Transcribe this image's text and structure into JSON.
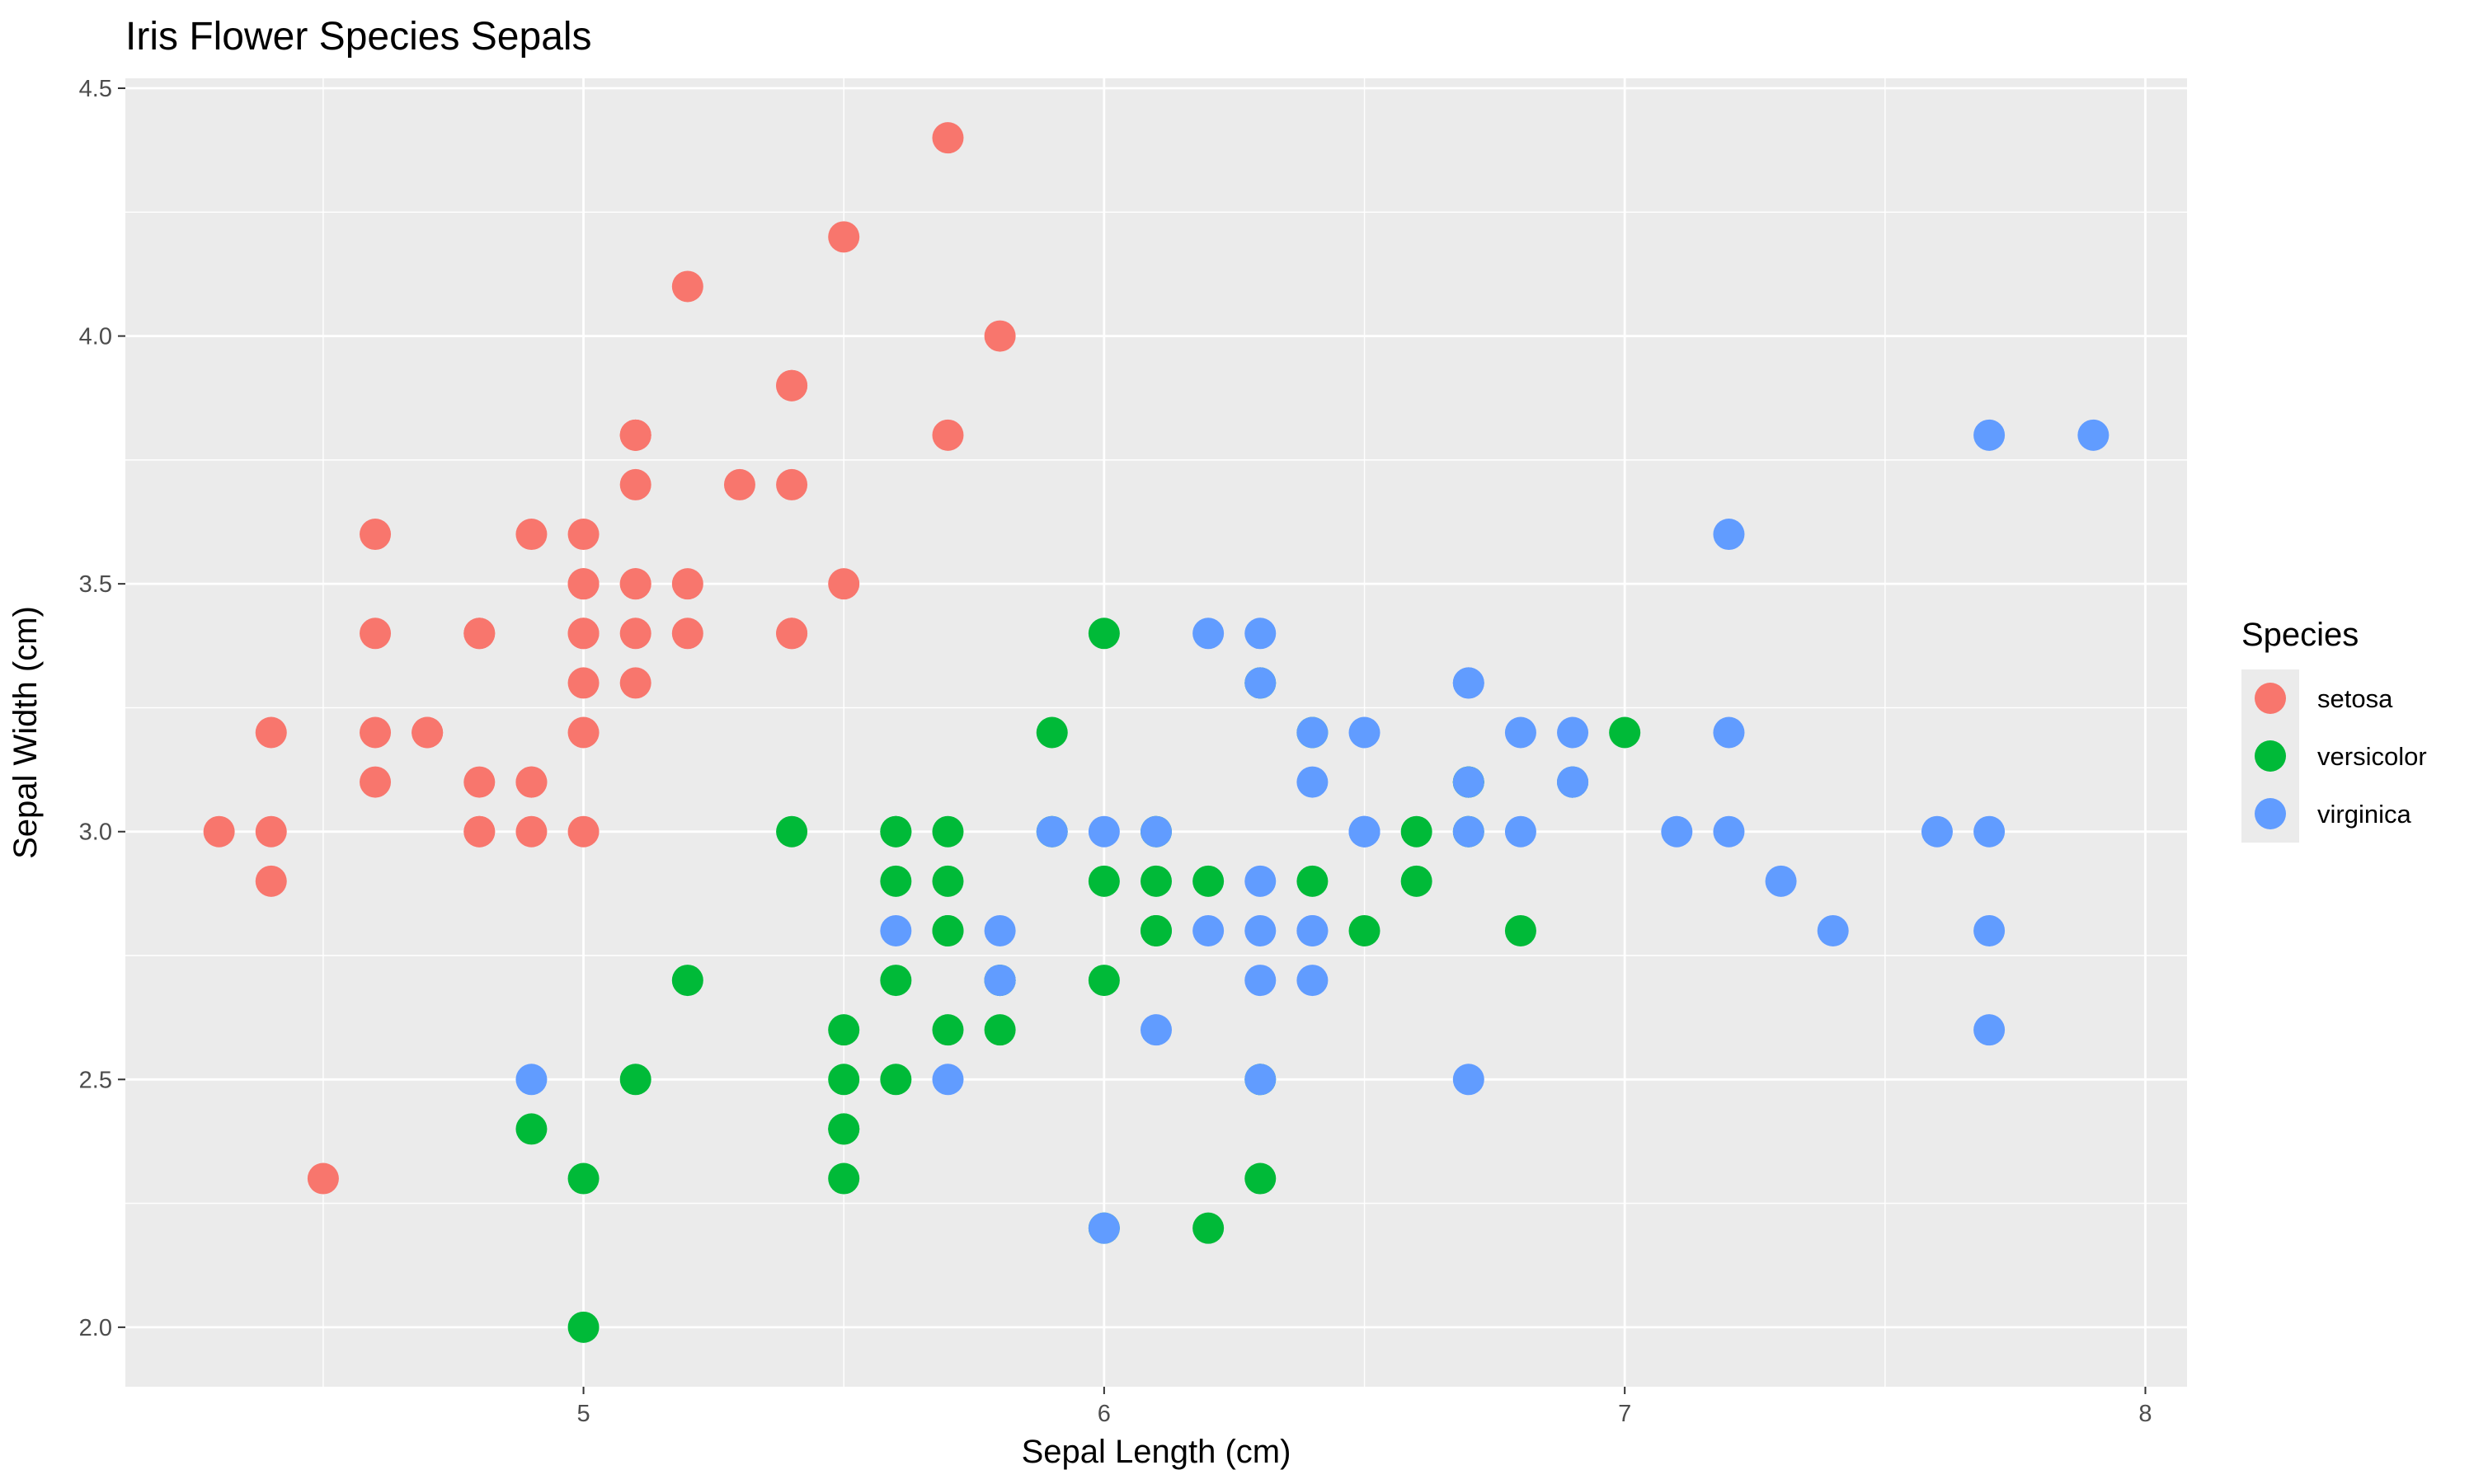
{
  "chart_data": {
    "type": "scatter",
    "title": "Iris Flower Species Sepals",
    "xlabel": "Sepal Length (cm)",
    "ylabel": "Sepal Width (cm)",
    "xlim": [
      4.12,
      8.08
    ],
    "ylim": [
      1.88,
      4.52
    ],
    "xticks": [
      5,
      6,
      7,
      8
    ],
    "xtick_labels": [
      "5",
      "6",
      "7",
      "8"
    ],
    "yticks": [
      2.0,
      2.5,
      3.0,
      3.5,
      4.0,
      4.5
    ],
    "ytick_labels": [
      "2.0",
      "2.5",
      "3.0",
      "3.5",
      "4.0",
      "4.5"
    ],
    "grid": true,
    "legend": {
      "title": "Species",
      "position": "right"
    },
    "series": [
      {
        "name": "setosa",
        "color": "#F8766D",
        "points": [
          [
            5.1,
            3.5
          ],
          [
            4.9,
            3.0
          ],
          [
            4.7,
            3.2
          ],
          [
            4.6,
            3.1
          ],
          [
            5.0,
            3.6
          ],
          [
            5.4,
            3.9
          ],
          [
            4.6,
            3.4
          ],
          [
            5.0,
            3.4
          ],
          [
            4.4,
            2.9
          ],
          [
            4.9,
            3.1
          ],
          [
            5.4,
            3.7
          ],
          [
            4.8,
            3.4
          ],
          [
            4.8,
            3.0
          ],
          [
            4.3,
            3.0
          ],
          [
            5.8,
            4.0
          ],
          [
            5.7,
            4.4
          ],
          [
            5.4,
            3.9
          ],
          [
            5.1,
            3.5
          ],
          [
            5.7,
            3.8
          ],
          [
            5.1,
            3.8
          ],
          [
            5.4,
            3.4
          ],
          [
            5.1,
            3.7
          ],
          [
            4.6,
            3.6
          ],
          [
            5.1,
            3.3
          ],
          [
            4.8,
            3.4
          ],
          [
            5.0,
            3.0
          ],
          [
            5.0,
            3.4
          ],
          [
            5.2,
            3.5
          ],
          [
            5.2,
            3.4
          ],
          [
            4.7,
            3.2
          ],
          [
            4.8,
            3.1
          ],
          [
            5.4,
            3.4
          ],
          [
            5.2,
            4.1
          ],
          [
            5.5,
            4.2
          ],
          [
            4.9,
            3.1
          ],
          [
            5.0,
            3.2
          ],
          [
            5.5,
            3.5
          ],
          [
            4.9,
            3.6
          ],
          [
            4.4,
            3.0
          ],
          [
            5.1,
            3.4
          ],
          [
            5.0,
            3.5
          ],
          [
            4.5,
            2.3
          ],
          [
            4.4,
            3.2
          ],
          [
            5.0,
            3.5
          ],
          [
            5.1,
            3.8
          ],
          [
            4.8,
            3.0
          ],
          [
            5.1,
            3.8
          ],
          [
            4.6,
            3.2
          ],
          [
            5.3,
            3.7
          ],
          [
            5.0,
            3.3
          ]
        ]
      },
      {
        "name": "versicolor",
        "color": "#00BA38",
        "points": [
          [
            7.0,
            3.2
          ],
          [
            6.4,
            3.2
          ],
          [
            6.9,
            3.1
          ],
          [
            5.5,
            2.3
          ],
          [
            6.5,
            2.8
          ],
          [
            5.7,
            2.8
          ],
          [
            6.3,
            3.3
          ],
          [
            4.9,
            2.4
          ],
          [
            6.6,
            2.9
          ],
          [
            5.2,
            2.7
          ],
          [
            5.0,
            2.0
          ],
          [
            5.9,
            3.0
          ],
          [
            6.0,
            2.2
          ],
          [
            6.1,
            2.9
          ],
          [
            5.6,
            2.9
          ],
          [
            6.7,
            3.1
          ],
          [
            5.6,
            3.0
          ],
          [
            5.8,
            2.7
          ],
          [
            6.2,
            2.2
          ],
          [
            5.6,
            2.5
          ],
          [
            5.9,
            3.2
          ],
          [
            6.1,
            2.8
          ],
          [
            6.3,
            2.5
          ],
          [
            6.1,
            2.8
          ],
          [
            6.4,
            2.9
          ],
          [
            6.6,
            3.0
          ],
          [
            6.8,
            2.8
          ],
          [
            6.7,
            3.0
          ],
          [
            6.0,
            2.9
          ],
          [
            5.7,
            2.6
          ],
          [
            5.5,
            2.4
          ],
          [
            5.5,
            2.4
          ],
          [
            5.8,
            2.7
          ],
          [
            6.0,
            2.7
          ],
          [
            5.4,
            3.0
          ],
          [
            6.0,
            3.4
          ],
          [
            6.7,
            3.1
          ],
          [
            6.3,
            2.3
          ],
          [
            5.6,
            3.0
          ],
          [
            5.5,
            2.5
          ],
          [
            5.5,
            2.6
          ],
          [
            6.1,
            3.0
          ],
          [
            5.8,
            2.6
          ],
          [
            5.0,
            2.3
          ],
          [
            5.6,
            2.7
          ],
          [
            5.7,
            3.0
          ],
          [
            5.7,
            2.9
          ],
          [
            6.2,
            2.9
          ],
          [
            5.1,
            2.5
          ],
          [
            5.7,
            2.8
          ]
        ]
      },
      {
        "name": "virginica",
        "color": "#619CFF",
        "points": [
          [
            6.3,
            3.3
          ],
          [
            5.8,
            2.7
          ],
          [
            7.1,
            3.0
          ],
          [
            6.3,
            2.9
          ],
          [
            6.5,
            3.0
          ],
          [
            7.6,
            3.0
          ],
          [
            4.9,
            2.5
          ],
          [
            7.3,
            2.9
          ],
          [
            6.7,
            2.5
          ],
          [
            7.2,
            3.6
          ],
          [
            6.5,
            3.2
          ],
          [
            6.4,
            2.7
          ],
          [
            6.8,
            3.0
          ],
          [
            5.7,
            2.5
          ],
          [
            5.8,
            2.8
          ],
          [
            6.4,
            3.2
          ],
          [
            6.5,
            3.0
          ],
          [
            7.7,
            3.8
          ],
          [
            7.7,
            2.6
          ],
          [
            6.0,
            2.2
          ],
          [
            6.9,
            3.2
          ],
          [
            5.6,
            2.8
          ],
          [
            7.7,
            2.8
          ],
          [
            6.3,
            2.7
          ],
          [
            6.7,
            3.3
          ],
          [
            7.2,
            3.2
          ],
          [
            6.2,
            2.8
          ],
          [
            6.1,
            3.0
          ],
          [
            6.4,
            2.8
          ],
          [
            7.2,
            3.0
          ],
          [
            7.4,
            2.8
          ],
          [
            7.9,
            3.8
          ],
          [
            6.4,
            2.8
          ],
          [
            6.3,
            2.8
          ],
          [
            6.1,
            2.6
          ],
          [
            7.7,
            3.0
          ],
          [
            6.3,
            3.4
          ],
          [
            6.4,
            3.1
          ],
          [
            6.0,
            3.0
          ],
          [
            6.9,
            3.1
          ],
          [
            6.7,
            3.1
          ],
          [
            6.9,
            3.1
          ],
          [
            5.8,
            2.7
          ],
          [
            6.8,
            3.2
          ],
          [
            6.7,
            3.3
          ],
          [
            6.7,
            3.0
          ],
          [
            6.3,
            2.5
          ],
          [
            6.5,
            3.0
          ],
          [
            6.2,
            3.4
          ],
          [
            5.9,
            3.0
          ]
        ]
      }
    ]
  }
}
